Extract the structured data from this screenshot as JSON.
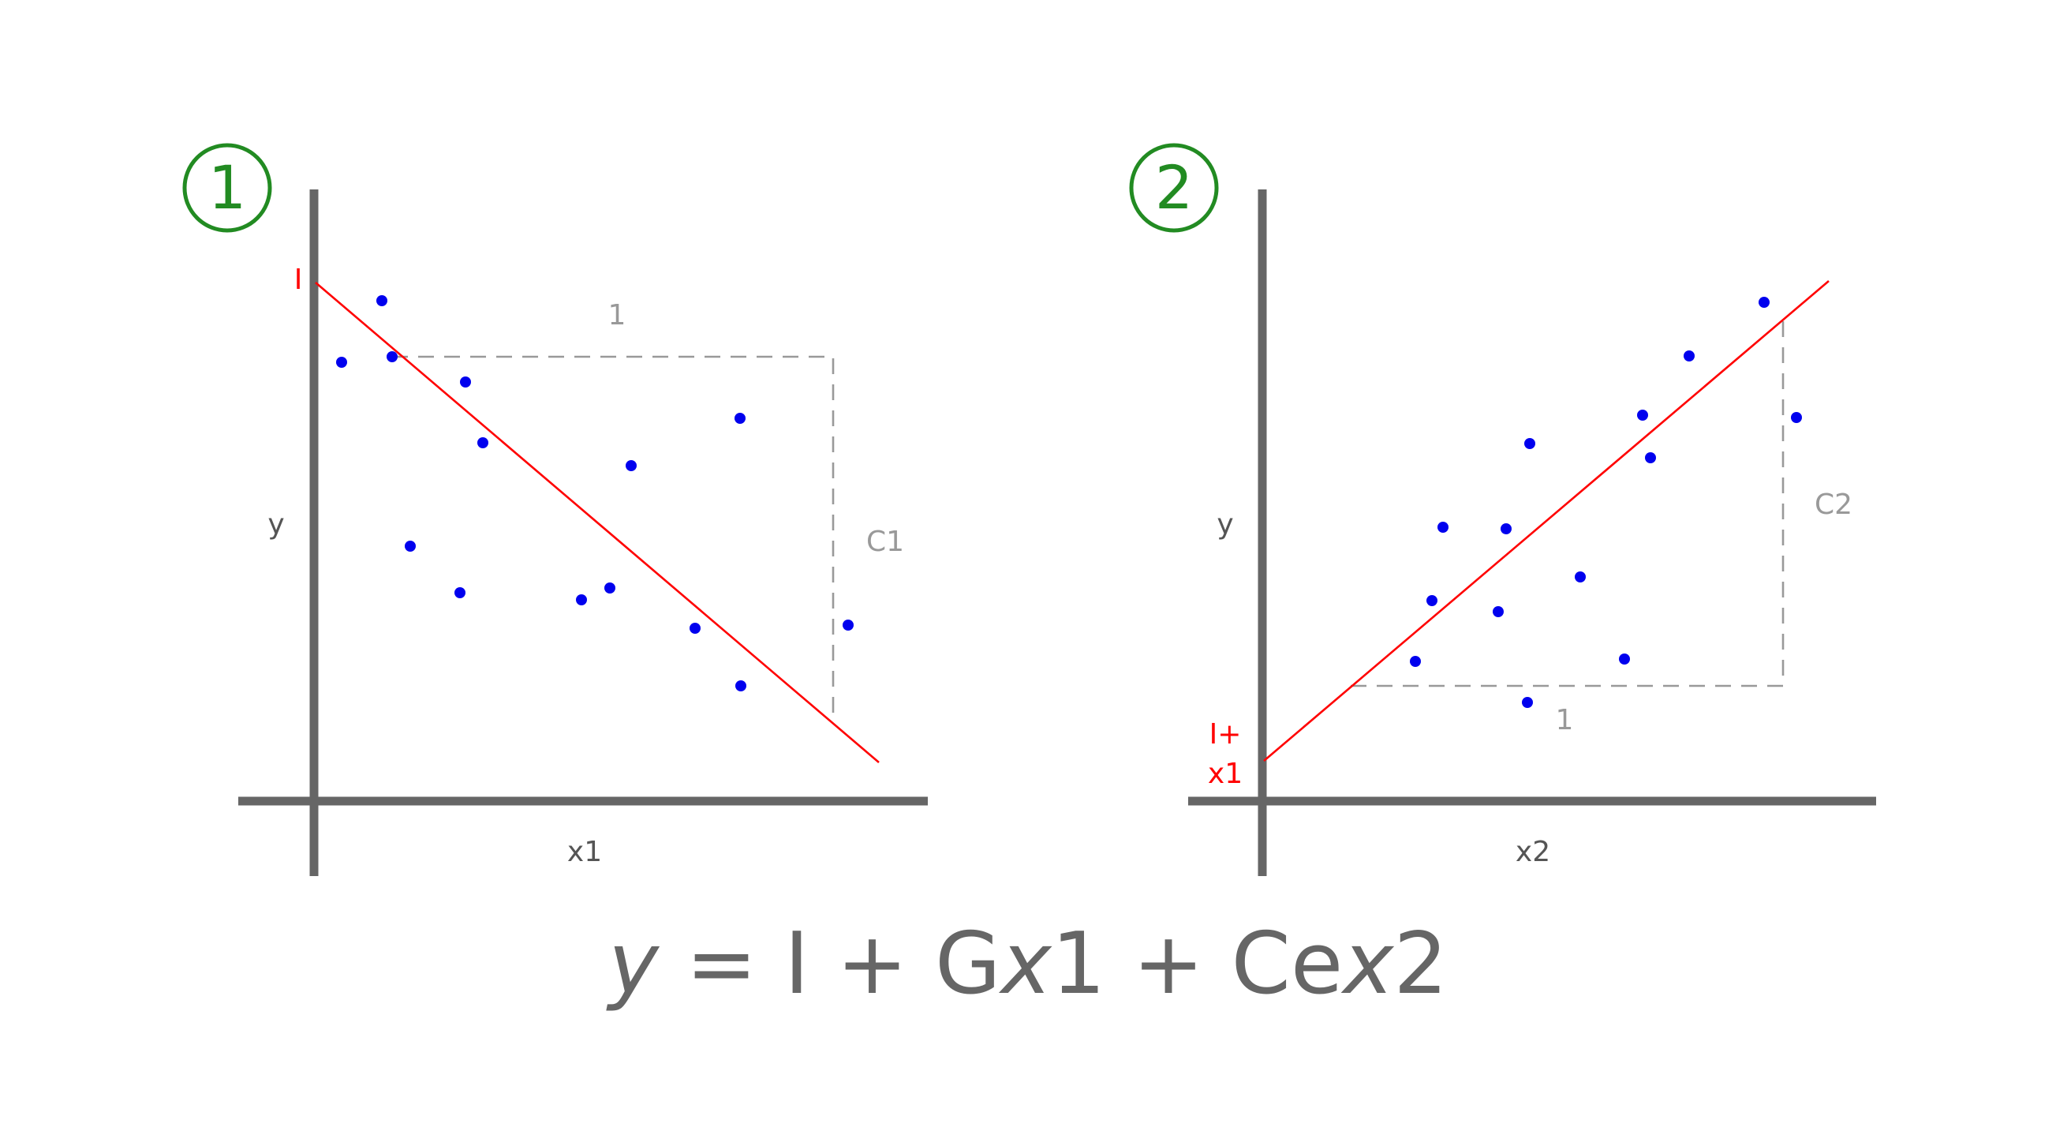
{
  "colors": {
    "axis": "#666666",
    "fit_line": "#ff0000",
    "points": "#0000ee",
    "guide": "#999999",
    "badge": "#228b22",
    "equation": "#666666"
  },
  "panels": [
    {
      "badge": "1",
      "ylabel": "y",
      "xlabel": "x1",
      "intercept_label": "I",
      "run_label": "1",
      "rise_label": "C1",
      "fit_direction": "descending"
    },
    {
      "badge": "2",
      "ylabel": "y",
      "xlabel": "x2",
      "intercept_label_line1": "I+",
      "intercept_label_line2": "x1",
      "run_label": "1",
      "rise_label": "C2",
      "fit_direction": "ascending"
    }
  ],
  "equation": {
    "y": "y",
    "eq": " = I + G",
    "x1_var": "x",
    "x1_num": "1 + Ce",
    "x2_var": "x",
    "x2_num": "2"
  }
}
